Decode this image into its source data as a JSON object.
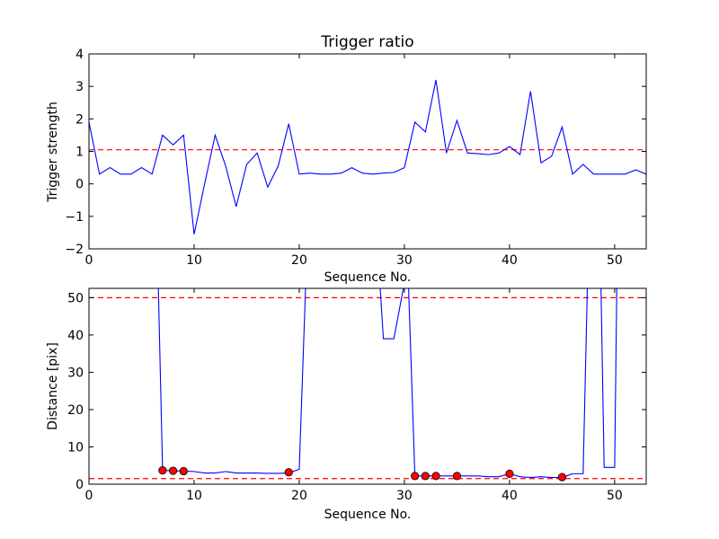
{
  "chart_data": [
    {
      "type": "line",
      "title": "Trigger ratio",
      "xlabel": "Sequence No.",
      "ylabel": "Trigger strength",
      "xlim": [
        0,
        53
      ],
      "ylim": [
        -2,
        4
      ],
      "xticks": [
        0,
        10,
        20,
        30,
        40,
        50
      ],
      "yticks": [
        -2,
        -1,
        0,
        1,
        2,
        3,
        4
      ],
      "xtick_labels": [
        "0",
        "10",
        "20",
        "30",
        "40",
        "50"
      ],
      "ytick_labels": [
        "−2",
        "−1",
        "0",
        "1",
        "2",
        "3",
        "4"
      ],
      "threshold": 1.05,
      "line_color": "#0000ff",
      "threshold_color": "#ff0000",
      "series": [
        {
          "x": [
            0,
            1,
            2,
            3,
            4,
            5,
            6,
            7,
            8,
            9,
            10,
            11,
            12,
            13,
            14,
            15,
            16,
            17,
            18,
            19,
            20,
            21,
            22,
            23,
            24,
            25,
            26,
            27,
            28,
            29,
            30,
            31,
            32,
            33,
            34,
            35,
            36,
            37,
            38,
            39,
            40,
            41,
            42,
            43,
            44,
            45,
            46,
            47,
            48,
            49,
            50,
            51,
            52,
            53
          ],
          "values": [
            1.9,
            0.3,
            0.5,
            0.3,
            0.3,
            0.5,
            0.3,
            1.5,
            1.2,
            1.5,
            -1.55,
            0.0,
            1.5,
            0.55,
            -0.7,
            0.6,
            0.95,
            -0.1,
            0.55,
            1.85,
            0.3,
            0.33,
            0.3,
            0.3,
            0.33,
            0.5,
            0.33,
            0.3,
            0.33,
            0.35,
            0.5,
            1.9,
            1.6,
            3.2,
            0.95,
            1.95,
            0.95,
            0.93,
            0.9,
            0.95,
            1.15,
            0.9,
            2.85,
            0.65,
            0.85,
            1.75,
            0.3,
            0.6,
            0.3,
            0.3,
            0.3,
            0.3,
            0.43,
            0.3
          ]
        }
      ]
    },
    {
      "type": "line",
      "title": "",
      "xlabel": "Sequence No.",
      "ylabel": "Distance [pix]",
      "xlim": [
        0,
        53
      ],
      "ylim": [
        0,
        52.5
      ],
      "xticks": [
        0,
        10,
        20,
        30,
        40,
        50
      ],
      "yticks": [
        0,
        10,
        20,
        30,
        40,
        50
      ],
      "xtick_labels": [
        "0",
        "10",
        "20",
        "30",
        "40",
        "50"
      ],
      "ytick_labels": [
        "0",
        "10",
        "20",
        "30",
        "40",
        "50"
      ],
      "thresholds": [
        50,
        1.5
      ],
      "line_color": "#0000ff",
      "threshold_color": "#ff0000",
      "marker_color": "#ff0000",
      "series": [
        {
          "x": [
            6.6,
            7,
            8,
            9,
            10,
            11,
            12,
            13,
            14,
            15,
            16,
            17,
            18,
            19,
            20,
            20.6
          ],
          "values": [
            52.5,
            3.7,
            3.6,
            3.5,
            3.4,
            3.0,
            3.0,
            3.4,
            3.0,
            3.0,
            3.0,
            2.9,
            2.9,
            3.0,
            4.0,
            52.5
          ]
        },
        {
          "x": [
            27.7,
            28,
            29,
            29.9
          ],
          "values": [
            52.5,
            39,
            39,
            52.5
          ]
        },
        {
          "x": [
            30.4,
            31,
            32,
            33,
            34,
            35,
            36,
            37,
            38,
            39,
            40,
            41,
            42,
            43,
            44,
            45,
            46,
            47,
            47.4
          ],
          "values": [
            52.5,
            2.2,
            2.2,
            2.2,
            2.2,
            2.2,
            2.2,
            2.2,
            2.0,
            2.0,
            2.8,
            2.0,
            1.8,
            2.0,
            1.8,
            1.8,
            2.8,
            2.8,
            52.5
          ]
        },
        {
          "x": [
            48.7,
            49,
            50,
            50.2
          ],
          "values": [
            52.5,
            4.5,
            4.5,
            52.5
          ]
        }
      ],
      "markers": {
        "x": [
          7,
          8,
          9,
          19,
          31,
          32,
          33,
          35,
          40,
          45
        ],
        "values": [
          3.7,
          3.6,
          3.5,
          3.2,
          2.2,
          2.2,
          2.2,
          2.2,
          2.8,
          1.9
        ]
      }
    }
  ]
}
